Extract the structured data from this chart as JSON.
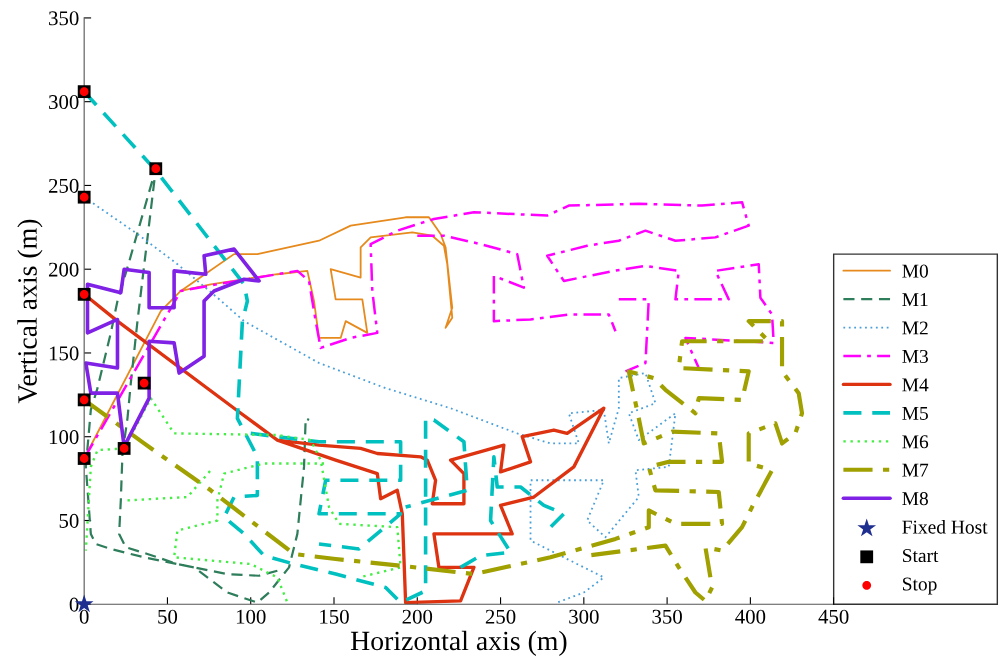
{
  "chart_data": {
    "type": "line",
    "xlabel": "Horizontal axis (m)",
    "ylabel": "Vertical axis (m)",
    "xlim": [
      0,
      450
    ],
    "ylim": [
      0,
      350
    ],
    "xticks": [
      0,
      50,
      100,
      150,
      200,
      250,
      300,
      350,
      400,
      450
    ],
    "yticks": [
      0,
      50,
      100,
      150,
      200,
      250,
      300,
      350
    ],
    "grid": false,
    "legend": "right",
    "series": [
      {
        "name": "M0",
        "color": "#e68a1e",
        "line_style": "solid",
        "x": [
          0,
          46,
          58,
          76,
          116,
          134,
          138,
          141,
          154,
          157,
          170,
          167,
          151,
          148,
          166,
          166,
          166,
          172,
          197,
          209,
          216,
          218,
          221,
          217,
          221,
          217,
          214,
          207,
          193,
          160,
          141,
          104,
          90,
          58
        ],
        "values": [
          87,
          175,
          187,
          191,
          197,
          199,
          181,
          159,
          159,
          169,
          162,
          182,
          182,
          200,
          195,
          204,
          213,
          219,
          222,
          220,
          214,
          203,
          171,
          165,
          177,
          213,
          221,
          231,
          231,
          226,
          217,
          209,
          209,
          187
        ]
      },
      {
        "name": "M1",
        "color": "#2e7d5b",
        "line_style": "dashed",
        "x": [
          116,
          105,
          86,
          56,
          38,
          25,
          21,
          22,
          23,
          26,
          28,
          32,
          43,
          26,
          20,
          16,
          8,
          4,
          1,
          4,
          7,
          16,
          36,
          66,
          86,
          104,
          111,
          123,
          128,
          132,
          133,
          135
        ],
        "values": [
          20,
          17,
          18,
          24,
          30,
          34,
          42,
          62,
          90,
          111,
          132,
          169,
          260,
          201,
          181,
          162,
          129,
          116,
          82,
          42,
          36,
          33,
          28,
          22,
          7,
          1,
          7,
          22,
          42,
          82,
          111,
          110
        ]
      },
      {
        "name": "M2",
        "color": "#4a9fd9",
        "line_style": "dotted",
        "x": [
          0,
          32,
          56,
          80,
          96,
          141,
          181,
          220,
          260,
          280,
          297,
          291,
          312,
          315,
          321,
          321,
          337,
          343,
          327,
          333,
          355,
          351,
          331,
          333,
          313,
          302,
          312,
          290,
          268,
          268,
          312,
          300,
          284
        ],
        "values": [
          243,
          221,
          203,
          183,
          169,
          144,
          129,
          117,
          102,
          96,
          96,
          114,
          116,
          96,
          117,
          135,
          138,
          120,
          114,
          98,
          114,
          82,
          80,
          64,
          40,
          50,
          74,
          74,
          74,
          38,
          16,
          7,
          1
        ]
      },
      {
        "name": "M3",
        "color": "#ff00ff",
        "line_style": "dashdot",
        "x": [
          0,
          58,
          80,
          128,
          135,
          139,
          142,
          160,
          176,
          173,
          172,
          188,
          210,
          234,
          278,
          291,
          333,
          371,
          395,
          399,
          379,
          355,
          337,
          321,
          302,
          278,
          288,
          318,
          337,
          357,
          355,
          387,
          379,
          405,
          406,
          413,
          414,
          361,
          369,
          null,
          200,
          216,
          238,
          260,
          264,
          246,
          246,
          268,
          291,
          315,
          319,
          null,
          321,
          339,
          337,
          325
        ],
        "values": [
          87,
          187,
          191,
          199,
          193,
          169,
          153,
          159,
          162,
          187,
          215,
          223,
          230,
          234,
          232,
          238,
          239,
          238,
          240,
          226,
          219,
          217,
          223,
          217,
          214,
          208,
          193,
          199,
          202,
          199,
          182,
          182,
          199,
          203,
          183,
          173,
          156,
          159,
          141,
          null,
          220,
          220,
          215,
          209,
          189,
          196,
          169,
          170,
          173,
          173,
          163,
          null,
          182,
          182,
          144,
          139
        ]
      },
      {
        "name": "M4",
        "color": "#dd3311",
        "line_style": "solid",
        "x": [
          0,
          20,
          90,
          116,
          151,
          176,
          178,
          188,
          191,
          193,
          226,
          234,
          213,
          210,
          257,
          250,
          270,
          294,
          312,
          290,
          282,
          263,
          268,
          250,
          252,
          220,
          228,
          228,
          209,
          211,
          206,
          202,
          176,
          166,
          141,
          116
        ],
        "values": [
          185,
          169,
          117,
          98,
          86,
          78,
          63,
          68,
          54,
          1,
          2,
          22,
          22,
          42,
          42,
          59,
          64,
          82,
          117,
          102,
          104,
          100,
          85,
          79,
          95,
          86,
          78,
          60,
          60,
          74,
          86,
          88,
          90,
          93,
          95,
          98
        ]
      },
      {
        "name": "M5",
        "color": "#00c0c0",
        "line_style": "dashed",
        "x": [
          0,
          43,
          96,
          98,
          95,
          92,
          104,
          104,
          90,
          84,
          96,
          108,
          126,
          151,
          181,
          190,
          205,
          205,
          210,
          228,
          230,
          193,
          null,
          100,
          116,
          141,
          190,
          190,
          145,
          141,
          190,
          165,
          141,
          null,
          226,
          238,
          256,
          249,
          244,
          246,
          248,
          262,
          276,
          288,
          280
        ],
        "values": [
          306,
          259,
          191,
          181,
          169,
          111,
          88,
          65,
          64,
          52,
          42,
          29,
          24,
          18,
          10,
          1,
          8,
          111,
          110,
          97,
          68,
          58,
          null,
          102,
          100,
          97,
          97,
          74,
          74,
          54,
          54,
          33,
          36,
          null,
          22,
          29,
          31,
          42,
          50,
          88,
          70,
          70,
          59,
          54,
          46
        ]
      },
      {
        "name": "M6",
        "color": "#44ee44",
        "line_style": "dotted",
        "x": [
          24,
          40,
          54,
          116,
          136,
          142,
          147,
          153,
          188,
          190,
          165,
          null,
          144,
          108,
          84,
          80,
          80,
          56,
          54,
          100,
          116,
          122,
          null,
          24,
          8,
          4,
          1,
          null,
          26,
          62,
          76
        ],
        "values": [
          93,
          123,
          102,
          101,
          98,
          86,
          58,
          48,
          46,
          22,
          16,
          null,
          84,
          84,
          78,
          62,
          50,
          44,
          28,
          24,
          16,
          1,
          null,
          93,
          92,
          82,
          32,
          null,
          62,
          64,
          80
        ]
      },
      {
        "name": "M7",
        "color": "#a0a000",
        "line_style": "dashdot",
        "x": [
          0,
          36,
          76,
          126,
          151,
          190,
          234,
          280,
          319,
          339,
          339,
          355,
          383,
          381,
          343,
          339,
          351,
          383,
          381,
          353,
          336,
          333,
          327,
          342,
          349,
          367,
          369,
          395,
          399,
          357,
          359,
          411,
          399,
          419,
          419,
          429,
          431,
          427,
          419,
          415,
          399,
          399,
          413,
          401,
          395,
          383,
          373,
          377,
          373,
          367,
          357,
          349,
          302
        ],
        "values": [
          122,
          96,
          68,
          30,
          27,
          23,
          18,
          28,
          39,
          46,
          56,
          48,
          48,
          67,
          68,
          82,
          85,
          85,
          102,
          103,
          96,
          111,
          139,
          135,
          128,
          114,
          123,
          122,
          139,
          141,
          157,
          157,
          169,
          169,
          139,
          126,
          114,
          102,
          96,
          108,
          102,
          84,
          80,
          58,
          46,
          32,
          34,
          10,
          2,
          7,
          22,
          35,
          29
        ]
      },
      {
        "name": "M8",
        "color": "#7f22e6",
        "line_style": "solid",
        "x": [
          24,
          20,
          4,
          1,
          20,
          20,
          2,
          2,
          22,
          24,
          39,
          39,
          54,
          54,
          73,
          72,
          90,
          105,
          96,
          78,
          72,
          72,
          57,
          54,
          39,
          39,
          25
        ],
        "values": [
          94,
          126,
          126,
          144,
          141,
          170,
          162,
          191,
          186,
          200,
          198,
          177,
          177,
          199,
          197,
          208,
          212,
          193,
          194,
          187,
          181,
          148,
          138,
          156,
          157,
          123,
          96
        ]
      },
      {
        "name": "Fixed Host",
        "type": "scatter",
        "color": "#1f2f8f",
        "marker": "star",
        "x": [
          0
        ],
        "values": [
          0
        ]
      },
      {
        "name": "Start",
        "type": "scatter",
        "color": "#000000",
        "marker": "square",
        "x": [
          0,
          43,
          0,
          0,
          0,
          0,
          36,
          24
        ],
        "values": [
          306,
          260,
          243,
          185,
          122,
          87,
          132,
          93
        ]
      },
      {
        "name": "Stop",
        "type": "scatter",
        "color": "#ff0000",
        "marker": "circle",
        "x": [
          0,
          43,
          0,
          0,
          0,
          0,
          36,
          24
        ],
        "values": [
          306,
          260,
          243,
          185,
          122,
          87,
          132,
          93
        ]
      }
    ]
  }
}
